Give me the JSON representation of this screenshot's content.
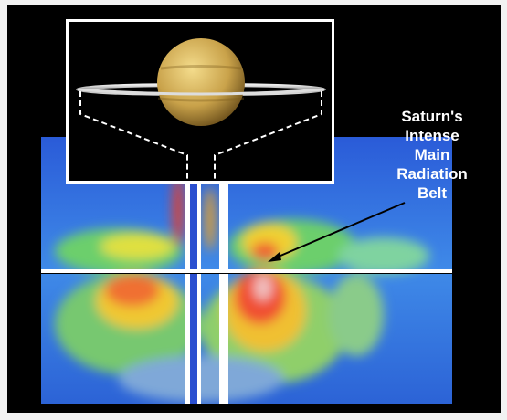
{
  "annotation": {
    "lines": [
      "Saturn's",
      "Intense",
      "Main",
      "Radiation",
      "Belt"
    ]
  }
}
